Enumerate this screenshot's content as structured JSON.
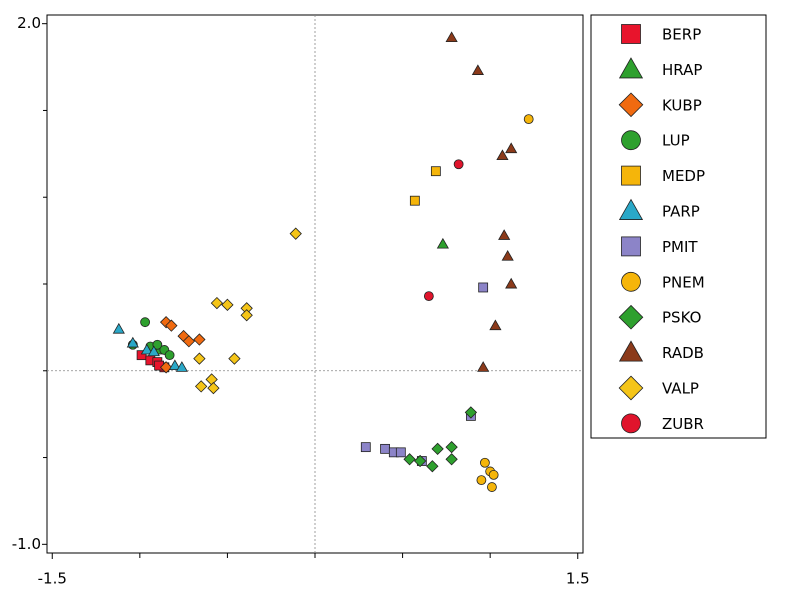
{
  "chart_data": {
    "type": "scatter",
    "xlim": [
      -1.53,
      1.53
    ],
    "ylim": [
      -1.05,
      2.05
    ],
    "xticks": [
      {
        "value": -1.5,
        "label": "-1.5"
      },
      {
        "value": 1.5,
        "label": "1.5"
      }
    ],
    "x_minor_ticks": [
      -1,
      -0.5,
      0,
      0.5,
      1
    ],
    "yticks": [
      {
        "value": -1,
        "label": "-1.0"
      },
      {
        "value": 2,
        "label": "2.0"
      }
    ],
    "y_minor_ticks": [
      -0.5,
      0,
      0.5,
      1,
      1.5
    ],
    "origin_lines": true,
    "series": [
      {
        "name": "BERP",
        "color": "#e8142c",
        "marker": "square",
        "x": [
          -0.99,
          -0.94,
          -0.9,
          -0.86,
          -0.89
        ],
        "y": [
          0.09,
          0.06,
          0.05,
          0.02,
          0.03
        ]
      },
      {
        "name": "HRAP",
        "color": "#2ea02e",
        "marker": "triangle",
        "x": [
          0.73,
          -0.89
        ],
        "y": [
          0.73,
          0.12
        ]
      },
      {
        "name": "KUBP",
        "color": "#f06a10",
        "marker": "diamond",
        "x": [
          -0.85,
          -0.82,
          -0.75,
          -0.72,
          -0.66,
          -0.85
        ],
        "y": [
          0.28,
          0.26,
          0.2,
          0.17,
          0.18,
          0.02
        ]
      },
      {
        "name": "LUP",
        "color": "#2ea02e",
        "marker": "circle",
        "x": [
          -0.97,
          -1.04,
          -0.94,
          -0.9,
          -0.86,
          -0.83
        ],
        "y": [
          0.28,
          0.15,
          0.14,
          0.15,
          0.12,
          0.09
        ]
      },
      {
        "name": "MEDP",
        "color": "#f5b50a",
        "marker": "square",
        "x": [
          0.69,
          0.57
        ],
        "y": [
          1.15,
          0.98
        ]
      },
      {
        "name": "PARP",
        "color": "#2aa8c8",
        "marker": "triangle",
        "x": [
          -1.12,
          -1.04,
          -0.96,
          -0.92,
          -0.8,
          -0.76
        ],
        "y": [
          0.24,
          0.16,
          0.12,
          0.11,
          0.03,
          0.02
        ]
      },
      {
        "name": "PMIT",
        "color": "#8c84c8",
        "marker": "square",
        "x": [
          0.96,
          0.89,
          0.29,
          0.4,
          0.45,
          0.49,
          0.61
        ],
        "y": [
          0.48,
          -0.26,
          -0.44,
          -0.45,
          -0.47,
          -0.47,
          -0.52
        ]
      },
      {
        "name": "PNEM",
        "color": "#f5b50a",
        "marker": "circle",
        "x": [
          1.22,
          0.97,
          1.0,
          1.02,
          0.95,
          1.01
        ],
        "y": [
          1.45,
          -0.53,
          -0.58,
          -0.6,
          -0.63,
          -0.67
        ]
      },
      {
        "name": "PSKO",
        "color": "#2ea02e",
        "marker": "diamond",
        "x": [
          0.89,
          0.7,
          0.78,
          0.54,
          0.6,
          0.67,
          0.78
        ],
        "y": [
          -0.24,
          -0.45,
          -0.44,
          -0.51,
          -0.52,
          -0.55,
          -0.51
        ]
      },
      {
        "name": "RADB",
        "color": "#8b3a1a",
        "marker": "triangle",
        "x": [
          0.78,
          0.93,
          1.12,
          1.07,
          1.08,
          1.1,
          1.12,
          1.03,
          0.96
        ],
        "y": [
          1.92,
          1.73,
          1.28,
          1.24,
          0.78,
          0.66,
          0.5,
          0.26,
          0.02
        ]
      },
      {
        "name": "VALP",
        "color": "#f5c518",
        "marker": "diamond",
        "x": [
          -0.11,
          -0.56,
          -0.5,
          -0.39,
          -0.39,
          -0.46,
          -0.66,
          -0.59,
          -0.65,
          -0.58
        ],
        "y": [
          0.79,
          0.39,
          0.38,
          0.36,
          0.32,
          0.07,
          0.07,
          -0.05,
          -0.09,
          -0.1
        ]
      },
      {
        "name": "ZUBR",
        "color": "#e0142c",
        "marker": "circle",
        "x": [
          0.82,
          0.65
        ],
        "y": [
          1.19,
          0.43
        ]
      }
    ]
  }
}
